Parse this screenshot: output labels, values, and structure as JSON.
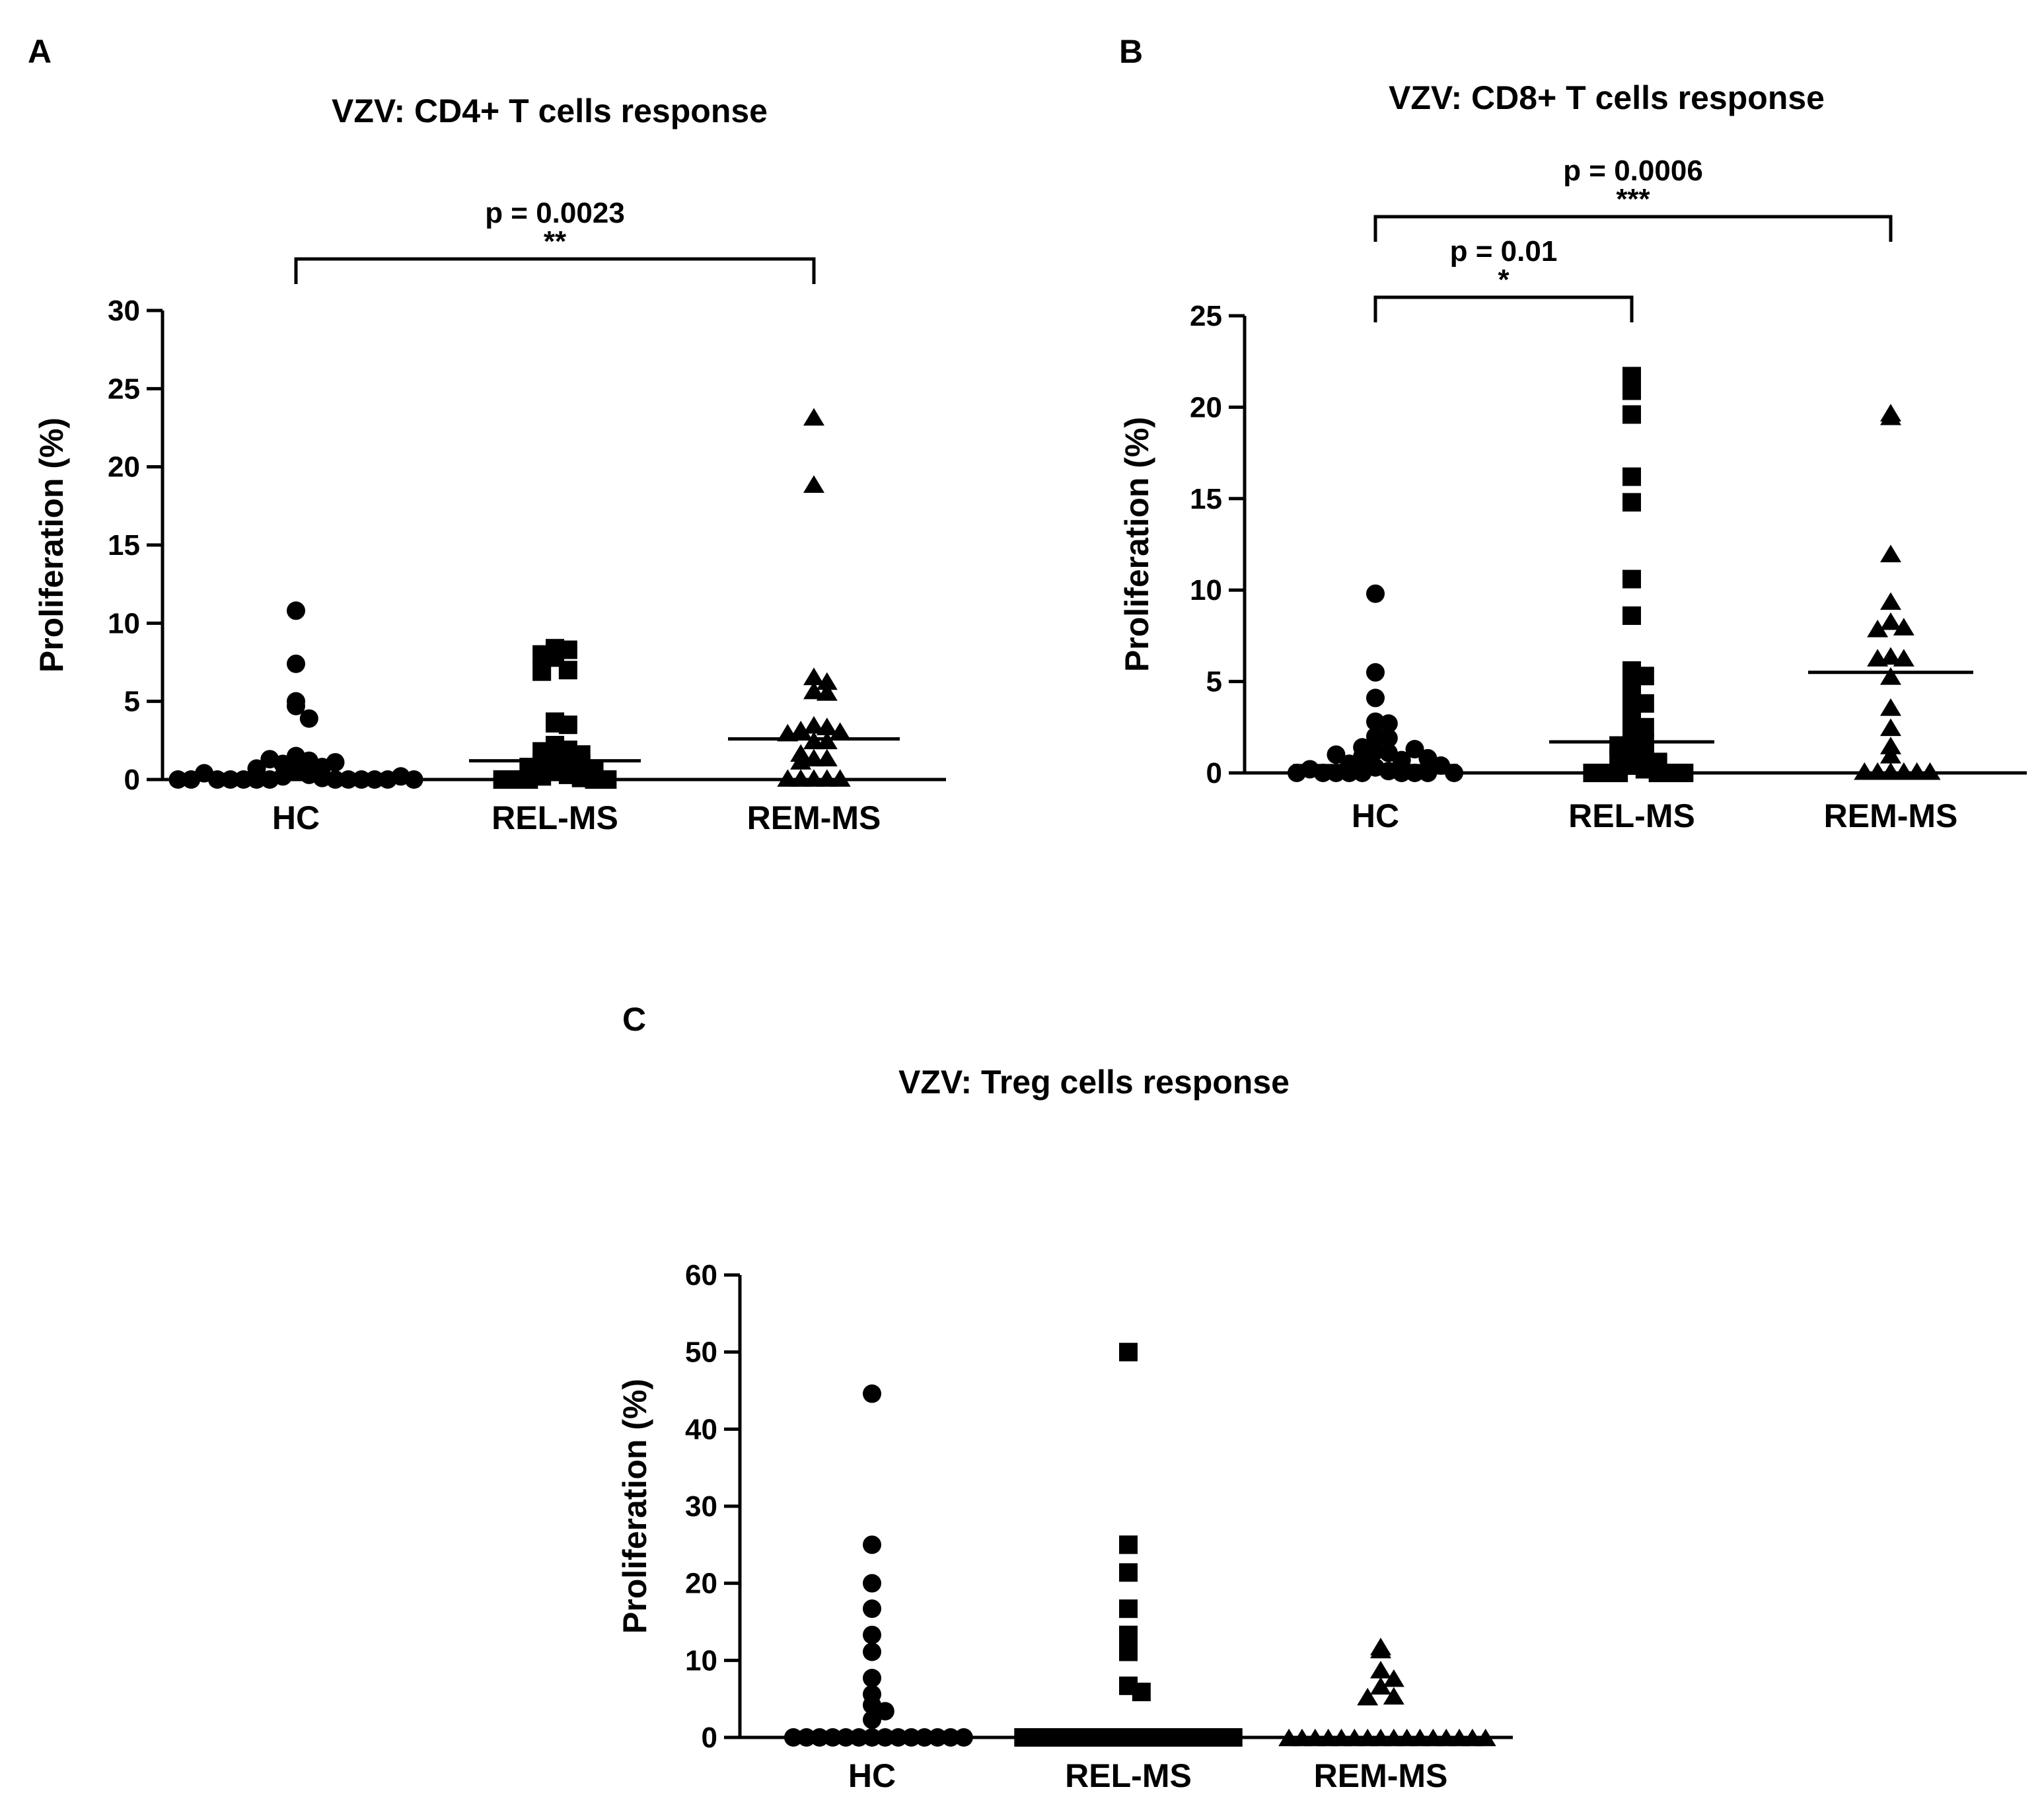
{
  "chart_data": [
    {
      "panel_label": "A",
      "type": "scatter",
      "title": "VZV: CD4+ T cells response",
      "ylabel": "Proliferation (%)",
      "ylim": [
        0,
        30
      ],
      "yticks": [
        "0",
        "5",
        "10",
        "15",
        "20",
        "25",
        "30"
      ],
      "categories": [
        "HC",
        "REL-MS",
        "REM-MS"
      ],
      "markers": [
        "circle",
        "square",
        "triangle"
      ],
      "series": [
        {
          "values": [
            10.8,
            7.4,
            5.0,
            4.7,
            3.9,
            1.5,
            1.2,
            1.0,
            0.8,
            0.5,
            0.3,
            0.2,
            0.1,
            0,
            0,
            0,
            0,
            0,
            0,
            0,
            0,
            0,
            0,
            1.3,
            1.1,
            0.7,
            0.4,
            0.2,
            0,
            0,
            0
          ]
        },
        {
          "values": [
            8.4,
            8.3,
            8.0,
            7.8,
            7.0,
            6.9,
            3.7,
            3.6,
            3.5,
            2.2,
            1.9,
            1.8,
            1.6,
            1.3,
            1.2,
            1.1,
            1.0,
            0.8,
            0.6,
            0.5,
            0.3,
            0.2,
            0.1,
            0,
            0,
            0,
            0,
            0
          ]
        },
        {
          "values": [
            23.2,
            18.9,
            6.6,
            6.3,
            5.7,
            5.6,
            3.5,
            3.4,
            3.2,
            3.1,
            3.0,
            2.5,
            2.5,
            1.7,
            1.4,
            1.4,
            1.2,
            0.1,
            0.1,
            0.1,
            0.1,
            0.1
          ]
        }
      ],
      "medians": [
        0.2,
        1.2,
        2.6
      ],
      "comparisons": [
        {
          "from": "HC",
          "to": "REM-MS",
          "p": "p = 0.0023",
          "stars": "**"
        }
      ]
    },
    {
      "panel_label": "B",
      "type": "scatter",
      "title": "VZV: CD8+ T cells response",
      "ylabel": "Proliferation (%)",
      "ylim": [
        0,
        25
      ],
      "yticks": [
        "0",
        "5",
        "10",
        "15",
        "20",
        "25"
      ],
      "categories": [
        "HC",
        "REL-MS",
        "REM-MS"
      ],
      "markers": [
        "circle",
        "square",
        "triangle"
      ],
      "series": [
        {
          "values": [
            9.8,
            5.5,
            4.1,
            2.8,
            2.7,
            2.0,
            1.9,
            1.4,
            1.2,
            1.1,
            0.9,
            0.7,
            0.5,
            0.3,
            0.1,
            0,
            0,
            0,
            0,
            0,
            0,
            0,
            1.3,
            1.0,
            0.8,
            0.4,
            0.2,
            0,
            0
          ]
        },
        {
          "values": [
            21.7,
            20.9,
            19.6,
            16.2,
            14.8,
            10.6,
            8.6,
            5.6,
            5.3,
            4.8,
            3.9,
            3.8,
            3.0,
            2.5,
            2.1,
            1.6,
            1.5,
            1.3,
            1.2,
            0.8,
            0.6,
            0.4,
            0.2,
            0,
            0,
            0,
            0,
            0,
            0
          ]
        },
        {
          "values": [
            19.7,
            19.5,
            12.0,
            9.4,
            8.3,
            8.0,
            7.9,
            6.4,
            6.3,
            6.3,
            5.3,
            3.6,
            2.5,
            1.5,
            1.0,
            0.1,
            0.1,
            0.1,
            0.1,
            0.1,
            0.1
          ]
        }
      ],
      "medians": [
        0.4,
        1.7,
        5.5
      ],
      "comparisons": [
        {
          "from": "HC",
          "to": "REL-MS",
          "p": "p = 0.01",
          "stars": "*"
        },
        {
          "from": "HC",
          "to": "REM-MS",
          "p": "p = 0.0006",
          "stars": "***"
        }
      ]
    },
    {
      "panel_label": "C",
      "type": "scatter",
      "title": "VZV: Treg cells response",
      "ylabel": "Proliferation (%)",
      "ylim": [
        0,
        60
      ],
      "yticks": [
        "0",
        "10",
        "20",
        "30",
        "40",
        "50",
        "60"
      ],
      "categories": [
        "HC",
        "REL-MS",
        "REM-MS"
      ],
      "markers": [
        "circle",
        "square",
        "triangle"
      ],
      "series": [
        {
          "values": [
            44.6,
            25.0,
            20.0,
            16.7,
            13.3,
            11.1,
            7.7,
            5.6,
            4.2,
            3.4,
            2.3,
            0,
            0,
            0,
            0,
            0,
            0,
            0,
            0,
            0,
            0,
            0,
            0,
            0,
            0
          ]
        },
        {
          "values": [
            50.0,
            25.0,
            21.4,
            16.7,
            13.3,
            11.1,
            6.7,
            5.9,
            0,
            0,
            0,
            0,
            0,
            0,
            0,
            0,
            0,
            0,
            0,
            0,
            0,
            0,
            0,
            0,
            0
          ]
        },
        {
          "values": [
            11.8,
            11.4,
            8.8,
            7.7,
            6.7,
            5.4,
            5.3,
            0,
            0,
            0,
            0,
            0,
            0,
            0,
            0,
            0,
            0,
            0,
            0,
            0,
            0,
            0,
            0
          ]
        }
      ],
      "medians": [
        0,
        0,
        0
      ],
      "comparisons": []
    }
  ]
}
